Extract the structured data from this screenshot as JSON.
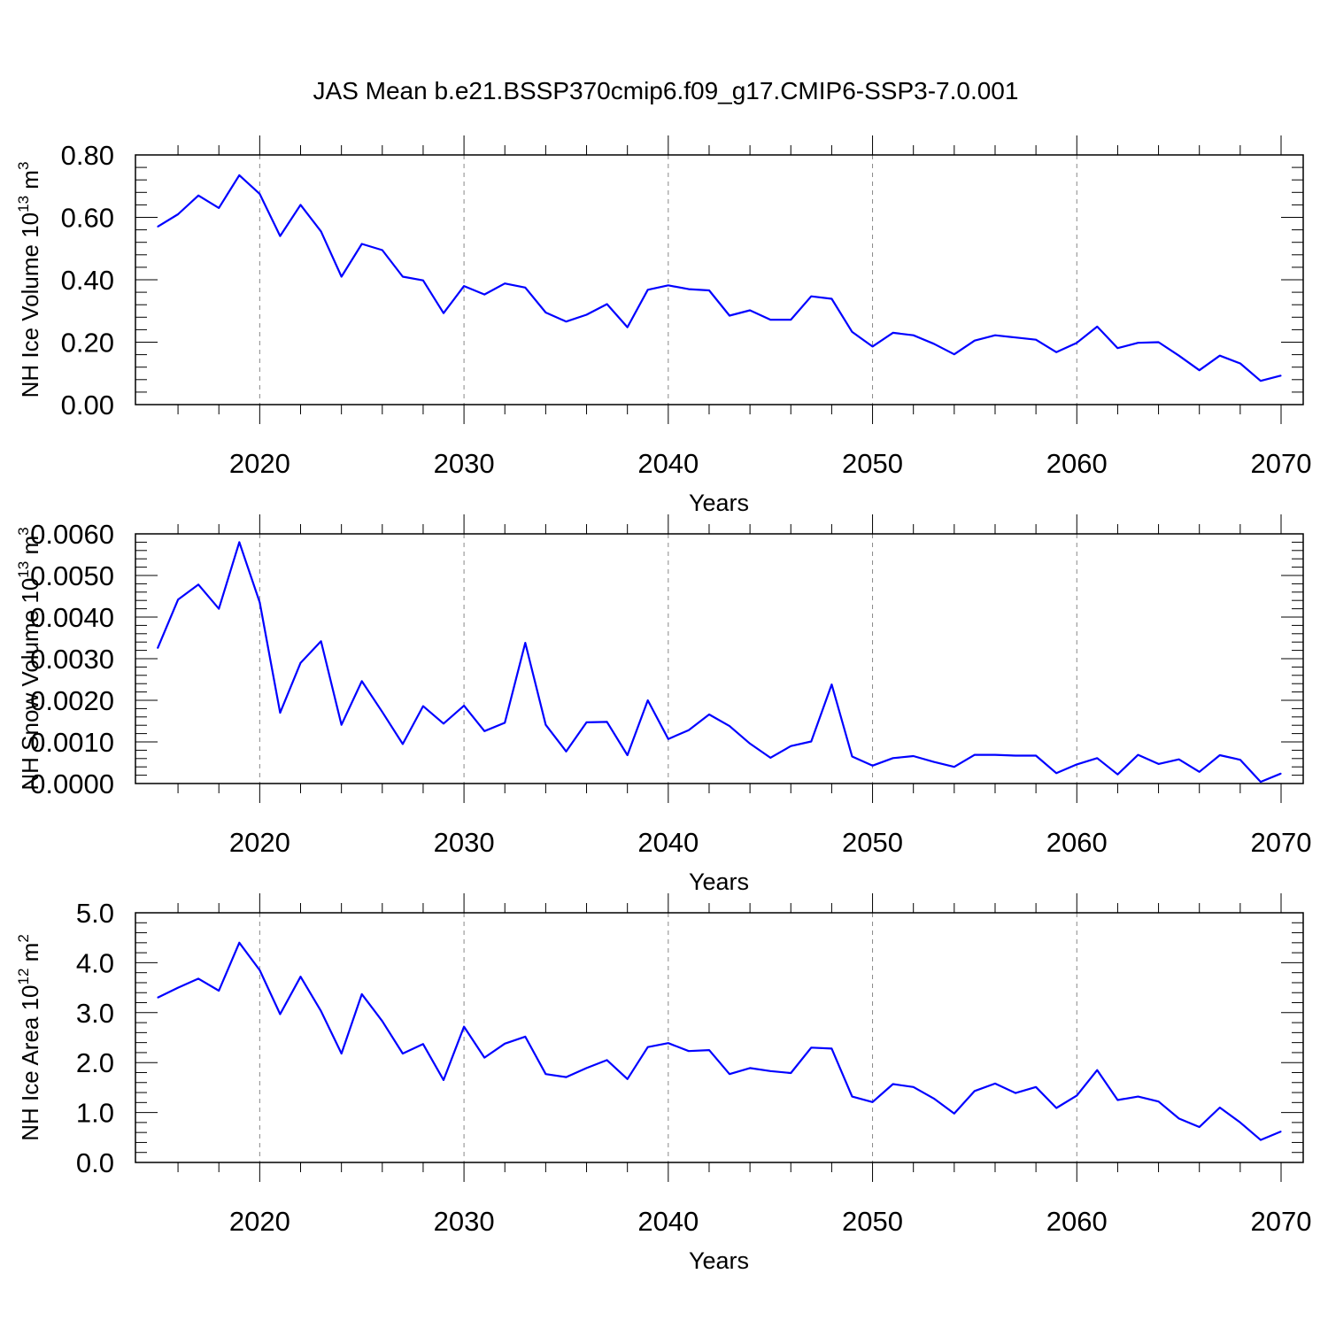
{
  "figure_title": "JAS Mean b.e21.BSSP370cmip6.f09_g17.CMIP6-SSP3-7.0.001",
  "line_color": "#0000ff",
  "chart_data": [
    {
      "type": "line",
      "name": "nh-ice-volume",
      "ylabel_main": "NH Ice Volume 10",
      "ylabel_exp": "13",
      "ylabel_unit": " m",
      "ylabel_unit_exp": "3",
      "xlabel": "Years",
      "xlim": [
        2015,
        2070
      ],
      "ylim": [
        0,
        0.8
      ],
      "yticks": [
        0,
        0.2,
        0.4,
        0.6,
        0.8
      ],
      "ytick_labels": [
        "0.00",
        "0.20",
        "0.40",
        "0.60",
        "0.80"
      ],
      "xticks": [
        2020,
        2030,
        2040,
        2050,
        2060,
        2070
      ],
      "xtick_labels": [
        "2020",
        "2030",
        "2040",
        "2050",
        "2060",
        "2070"
      ],
      "x": [
        2015,
        2016,
        2017,
        2018,
        2019,
        2020,
        2021,
        2022,
        2023,
        2024,
        2025,
        2026,
        2027,
        2028,
        2029,
        2030,
        2031,
        2032,
        2033,
        2034,
        2035,
        2036,
        2037,
        2038,
        2039,
        2040,
        2041,
        2042,
        2043,
        2044,
        2045,
        2046,
        2047,
        2048,
        2049,
        2050,
        2051,
        2052,
        2053,
        2054,
        2055,
        2056,
        2057,
        2058,
        2059,
        2060,
        2061,
        2062,
        2063,
        2064,
        2065,
        2066,
        2067,
        2068,
        2069,
        2070
      ],
      "values": [
        0.57,
        0.61,
        0.67,
        0.63,
        0.735,
        0.675,
        0.54,
        0.64,
        0.555,
        0.41,
        0.515,
        0.495,
        0.41,
        0.398,
        0.293,
        0.38,
        0.353,
        0.388,
        0.375,
        0.295,
        0.266,
        0.288,
        0.322,
        0.248,
        0.368,
        0.382,
        0.37,
        0.366,
        0.285,
        0.302,
        0.272,
        0.272,
        0.347,
        0.339,
        0.233,
        0.186,
        0.23,
        0.222,
        0.195,
        0.161,
        0.205,
        0.222,
        0.215,
        0.208,
        0.168,
        0.198,
        0.25,
        0.181,
        0.198,
        0.2,
        0.157,
        0.11,
        0.157,
        0.132,
        0.076,
        0.093
      ]
    },
    {
      "type": "line",
      "name": "nh-snow-volume",
      "ylabel_main": "NH Snow Volume 10",
      "ylabel_exp": "13",
      "ylabel_unit": " m",
      "ylabel_unit_exp": "3",
      "xlabel": "Years",
      "xlim": [
        2015,
        2070
      ],
      "ylim": [
        0,
        0.006
      ],
      "yticks": [
        0,
        0.001,
        0.002,
        0.003,
        0.004,
        0.005,
        0.006
      ],
      "ytick_labels": [
        "0.0000",
        "0.0010",
        "0.0020",
        "0.0030",
        "0.0040",
        "0.0050",
        "0.0060"
      ],
      "xticks": [
        2020,
        2030,
        2040,
        2050,
        2060,
        2070
      ],
      "xtick_labels": [
        "2020",
        "2030",
        "2040",
        "2050",
        "2060",
        "2070"
      ],
      "x": [
        2015,
        2016,
        2017,
        2018,
        2019,
        2020,
        2021,
        2022,
        2023,
        2024,
        2025,
        2026,
        2027,
        2028,
        2029,
        2030,
        2031,
        2032,
        2033,
        2034,
        2035,
        2036,
        2037,
        2038,
        2039,
        2040,
        2041,
        2042,
        2043,
        2044,
        2045,
        2046,
        2047,
        2048,
        2049,
        2050,
        2051,
        2052,
        2053,
        2054,
        2055,
        2056,
        2057,
        2058,
        2059,
        2060,
        2061,
        2062,
        2063,
        2064,
        2065,
        2066,
        2067,
        2068,
        2069,
        2070
      ],
      "values": [
        0.00325,
        0.00442,
        0.00478,
        0.0042,
        0.0058,
        0.00435,
        0.0017,
        0.0029,
        0.00342,
        0.00141,
        0.00246,
        0.00172,
        0.00095,
        0.00186,
        0.00144,
        0.00187,
        0.00126,
        0.00146,
        0.00338,
        0.00141,
        0.00077,
        0.00147,
        0.00148,
        0.00068,
        0.002,
        0.00107,
        0.00128,
        0.00166,
        0.00138,
        0.00096,
        0.00062,
        0.0009,
        0.00101,
        0.00238,
        0.00065,
        0.00043,
        0.00061,
        0.00066,
        0.00052,
        0.0004,
        0.00069,
        0.00069,
        0.00067,
        0.00067,
        0.00025,
        0.00046,
        0.00061,
        0.00022,
        0.00069,
        0.00047,
        0.00058,
        0.00028,
        0.00068,
        0.00057,
        4e-05,
        0.00024
      ]
    },
    {
      "type": "line",
      "name": "nh-ice-area",
      "ylabel_main": "NH Ice Area 10",
      "ylabel_exp": "12",
      "ylabel_unit": " m",
      "ylabel_unit_exp": "2",
      "xlabel": "Years",
      "xlim": [
        2015,
        2070
      ],
      "ylim": [
        0,
        5
      ],
      "yticks": [
        0,
        1,
        2,
        3,
        4,
        5
      ],
      "ytick_labels": [
        "0.0",
        "1.0",
        "2.0",
        "3.0",
        "4.0",
        "5.0"
      ],
      "xticks": [
        2020,
        2030,
        2040,
        2050,
        2060,
        2070
      ],
      "xtick_labels": [
        "2020",
        "2030",
        "2040",
        "2050",
        "2060",
        "2070"
      ],
      "x": [
        2015,
        2016,
        2017,
        2018,
        2019,
        2020,
        2021,
        2022,
        2023,
        2024,
        2025,
        2026,
        2027,
        2028,
        2029,
        2030,
        2031,
        2032,
        2033,
        2034,
        2035,
        2036,
        2037,
        2038,
        2039,
        2040,
        2041,
        2042,
        2043,
        2044,
        2045,
        2046,
        2047,
        2048,
        2049,
        2050,
        2051,
        2052,
        2053,
        2054,
        2055,
        2056,
        2057,
        2058,
        2059,
        2060,
        2061,
        2062,
        2063,
        2064,
        2065,
        2066,
        2067,
        2068,
        2069,
        2070
      ],
      "values": [
        3.3,
        3.5,
        3.68,
        3.44,
        4.4,
        3.85,
        2.97,
        3.72,
        3.03,
        2.18,
        3.37,
        2.83,
        2.18,
        2.37,
        1.65,
        2.72,
        2.1,
        2.38,
        2.52,
        1.77,
        1.71,
        1.89,
        2.05,
        1.67,
        2.31,
        2.39,
        2.23,
        2.25,
        1.77,
        1.89,
        1.83,
        1.79,
        2.3,
        2.28,
        1.32,
        1.21,
        1.57,
        1.51,
        1.28,
        0.98,
        1.43,
        1.58,
        1.39,
        1.51,
        1.09,
        1.34,
        1.85,
        1.25,
        1.32,
        1.22,
        0.88,
        0.71,
        1.1,
        0.8,
        0.45,
        0.62
      ]
    }
  ]
}
